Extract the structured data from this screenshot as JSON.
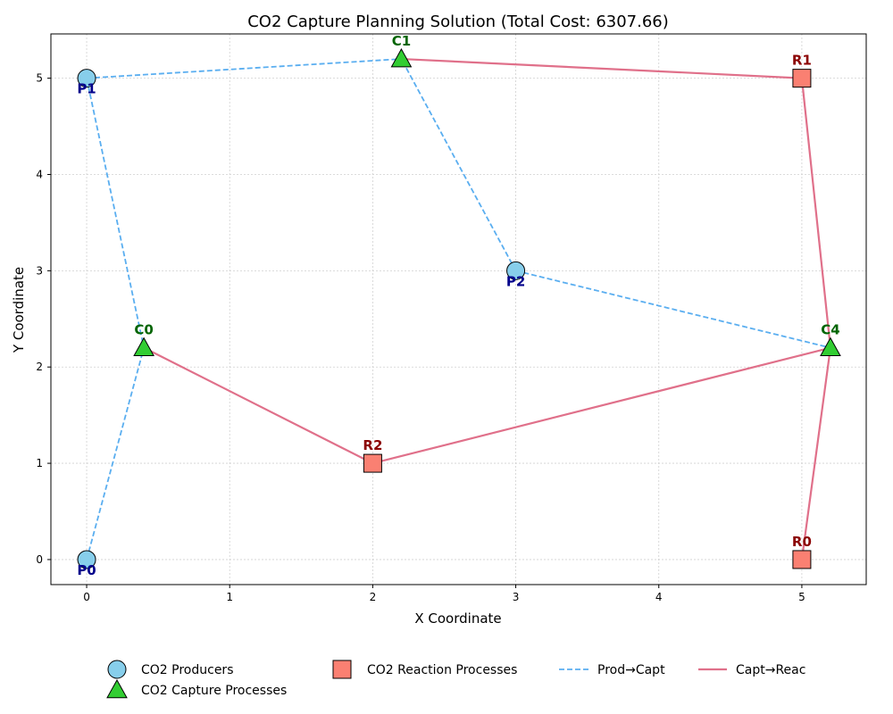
{
  "chart_data": {
    "type": "scatter",
    "title": "CO2 Capture Planning Solution (Total Cost: 6307.66)",
    "xlabel": "X Coordinate",
    "ylabel": "Y Coordinate",
    "xlim": [
      -0.25,
      5.45
    ],
    "ylim": [
      -0.26,
      5.46
    ],
    "xticks": [
      0,
      1,
      2,
      3,
      4,
      5
    ],
    "yticks": [
      0,
      1,
      2,
      3,
      4,
      5
    ],
    "grid": true,
    "legend_placement": "bottom",
    "producers": [
      {
        "name": "P0",
        "x": 0,
        "y": 0
      },
      {
        "name": "P1",
        "x": 0,
        "y": 5
      },
      {
        "name": "P2",
        "x": 3,
        "y": 3
      }
    ],
    "capture": [
      {
        "name": "C0",
        "x": 0.4,
        "y": 2.2
      },
      {
        "name": "C1",
        "x": 2.2,
        "y": 5.2
      },
      {
        "name": "C4",
        "x": 5.2,
        "y": 2.2
      }
    ],
    "reaction": [
      {
        "name": "R0",
        "x": 5,
        "y": 0
      },
      {
        "name": "R1",
        "x": 5,
        "y": 5
      },
      {
        "name": "R2",
        "x": 2,
        "y": 1
      }
    ],
    "prod_capt_links": [
      {
        "from": "P0",
        "to": "C0"
      },
      {
        "from": "P1",
        "to": "C0"
      },
      {
        "from": "P1",
        "to": "C1"
      },
      {
        "from": "P2",
        "to": "C1"
      },
      {
        "from": "P2",
        "to": "C4"
      }
    ],
    "capt_reac_links": [
      {
        "from": "C0",
        "to": "R2"
      },
      {
        "from": "C4",
        "to": "R2"
      },
      {
        "from": "C4",
        "to": "R0"
      },
      {
        "from": "C4",
        "to": "R1"
      },
      {
        "from": "C1",
        "to": "R1"
      }
    ],
    "legend": [
      {
        "label": "CO2 Producers",
        "marker": "circle"
      },
      {
        "label": "CO2 Capture Processes",
        "marker": "triangle"
      },
      {
        "label": "CO2 Reaction Processes",
        "marker": "square"
      },
      {
        "label": "Prod→Capt",
        "marker": "dashed-line"
      },
      {
        "label": "Capt→Reac",
        "marker": "solid-line"
      }
    ],
    "colors": {
      "producer_fill": "#87ceeb",
      "producer_label": "#00008b",
      "capture_fill": "#32cd32",
      "capture_label": "#006400",
      "reaction_fill": "#fa8072",
      "reaction_label": "#8b0000",
      "prod_capt_line": "#5aaef0",
      "capt_reac_line": "#e0708a",
      "grid": "#d0d0d0"
    }
  }
}
